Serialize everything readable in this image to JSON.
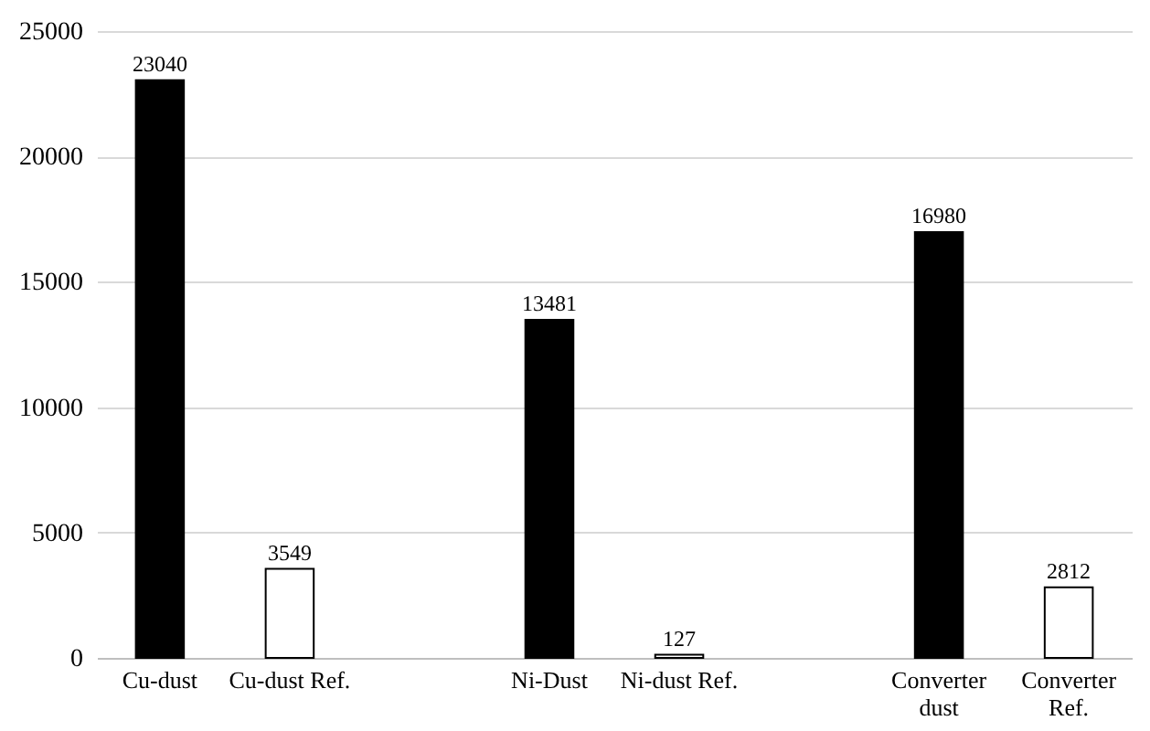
{
  "chart_data": {
    "type": "bar",
    "categories": [
      "Cu-dust",
      "Cu-dust Ref.",
      null,
      "Ni-Dust",
      "Ni-dust Ref.",
      null,
      "Converter dust",
      "Converter Ref."
    ],
    "values": [
      23040,
      3549,
      null,
      13481,
      127,
      null,
      16980,
      2812
    ],
    "colors": [
      "#000000",
      "#ffffff",
      null,
      "#000000",
      "#ffffff",
      null,
      "#000000",
      "#ffffff"
    ],
    "ylim": [
      0,
      25000
    ],
    "yticks": [
      0,
      5000,
      10000,
      15000,
      20000,
      25000
    ],
    "grid": "y",
    "data_labels": true
  }
}
